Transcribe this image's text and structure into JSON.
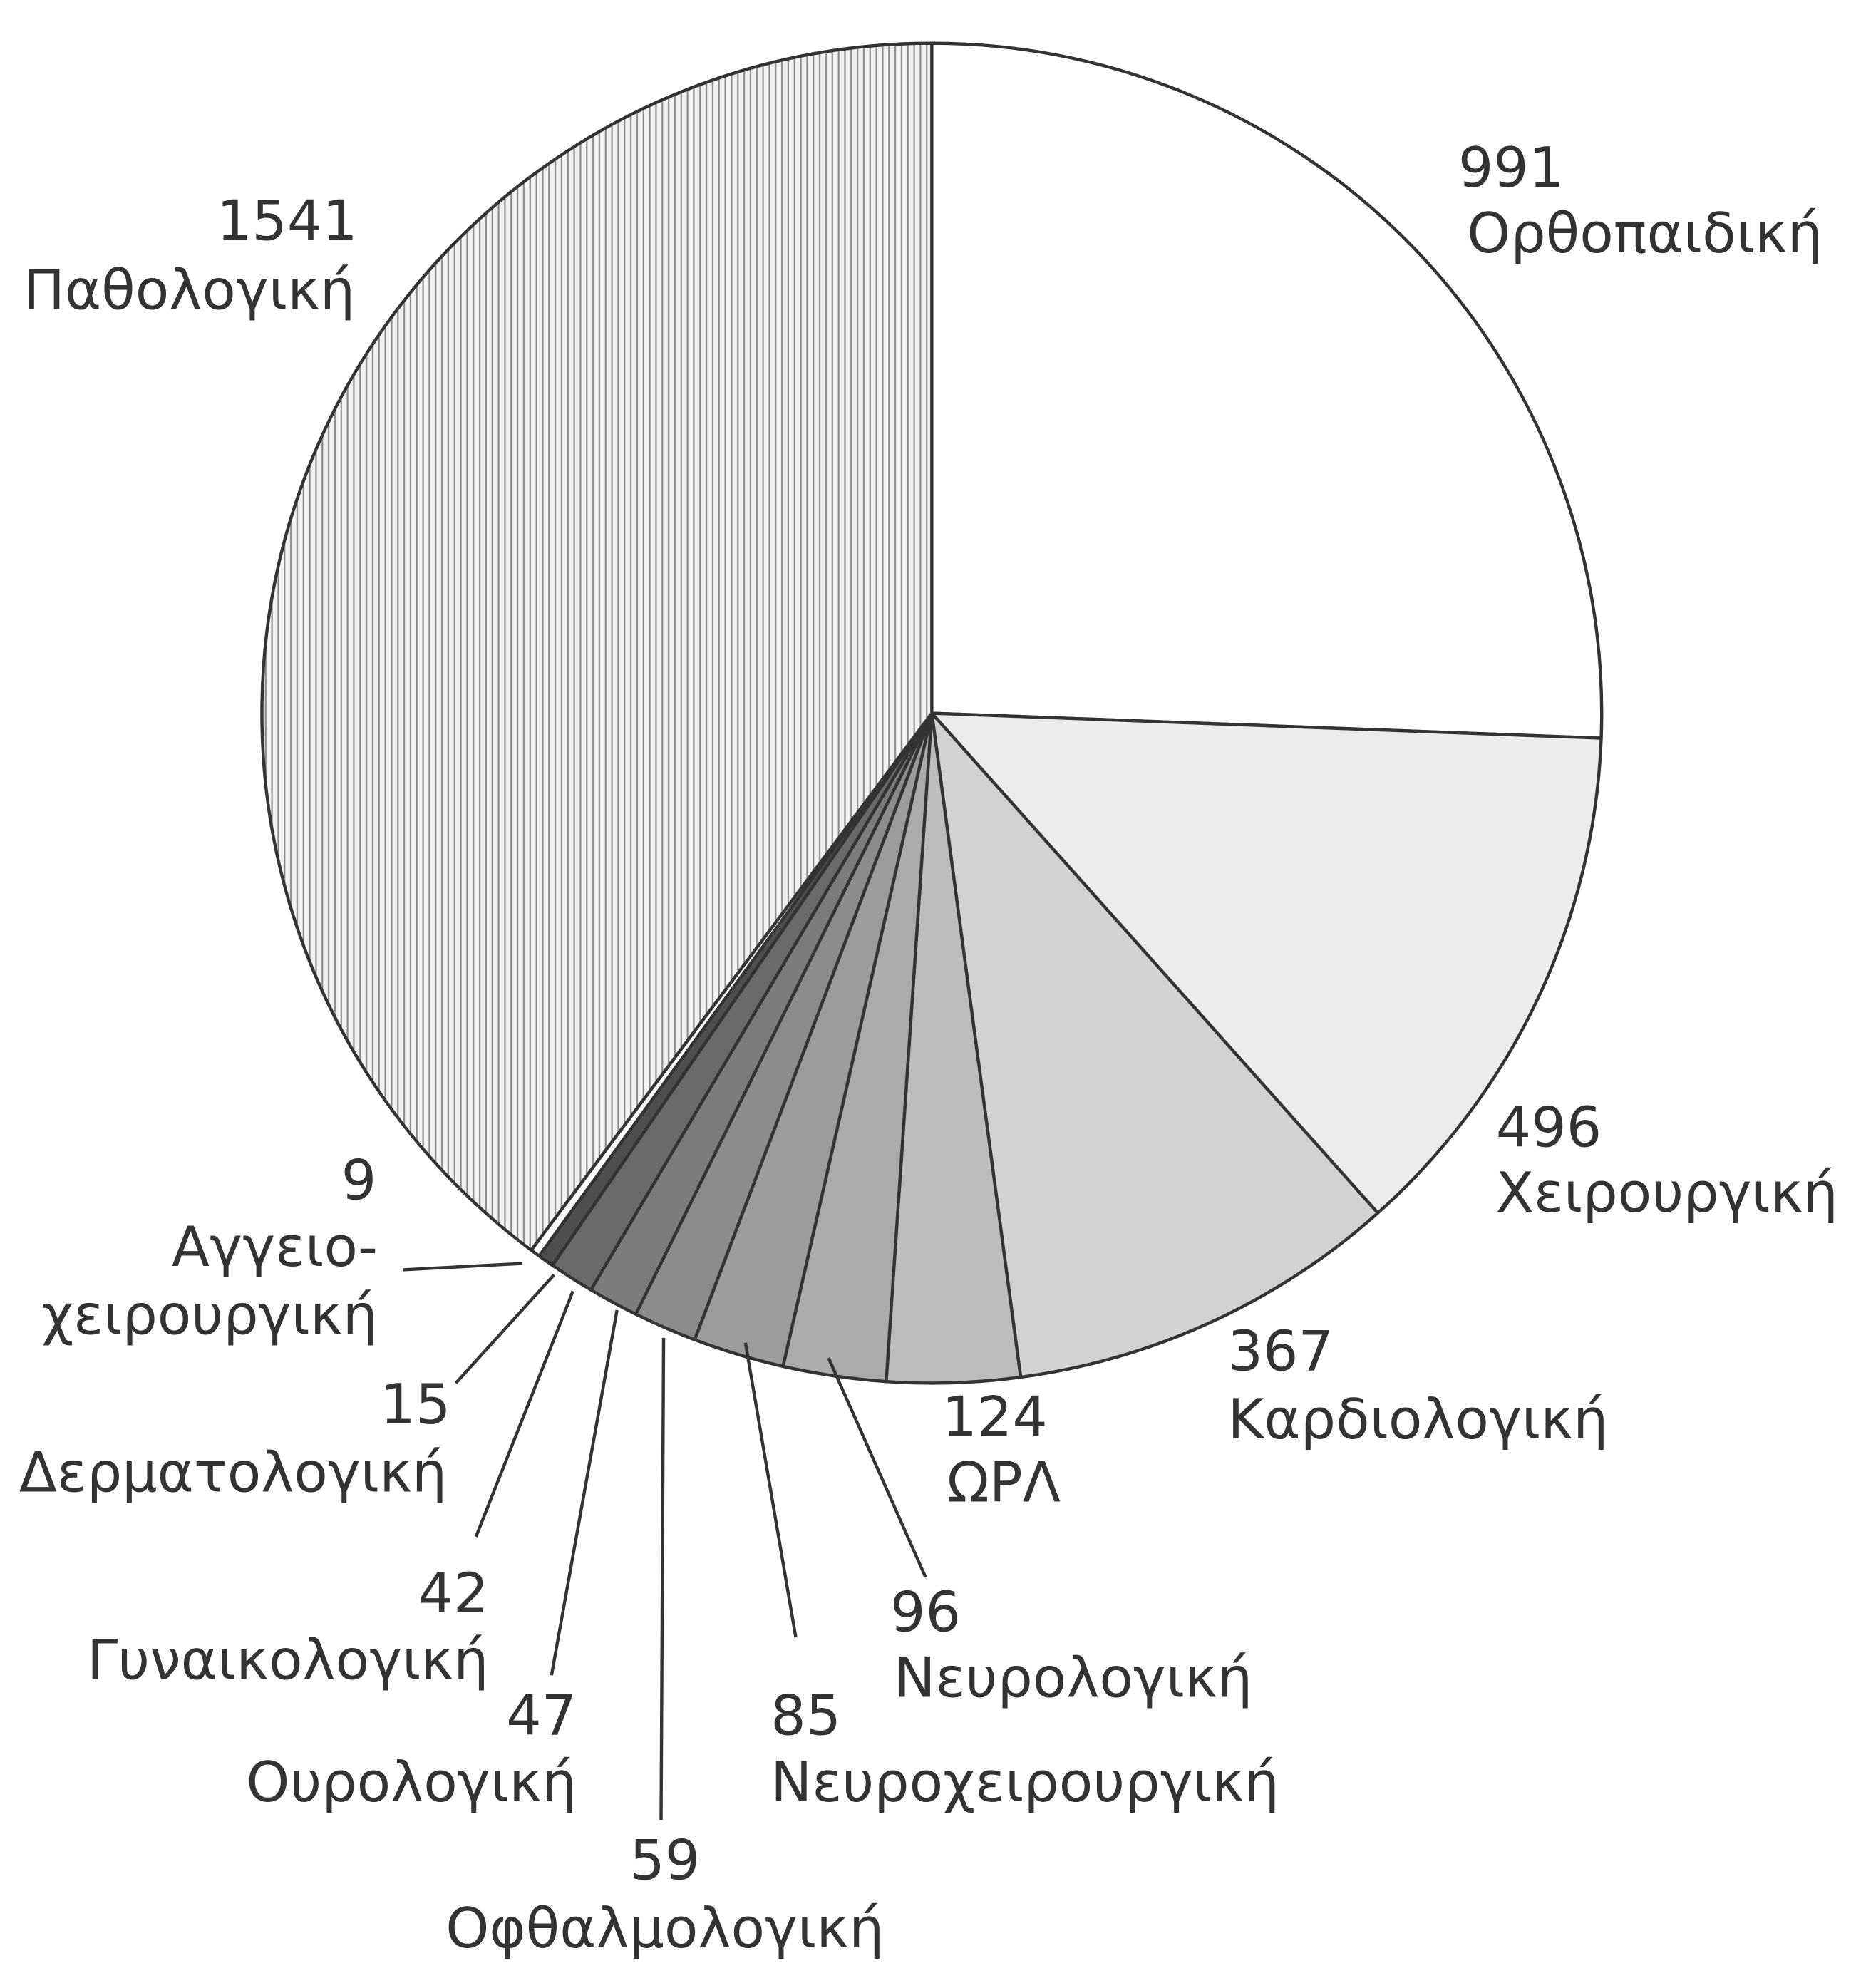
{
  "chart_data": {
    "type": "pie",
    "categories": [
      "Ορθοπαιδική",
      "Χειρουργική",
      "Καρδιολογική",
      "ΩΡΛ",
      "Νευρολογική",
      "Νευροχειρουργική",
      "Οφθαλμολογική",
      "Ουρολογική",
      "Γυναικολογική",
      "Δερματολογική",
      "Αγγειο-\nχειρουργική",
      "Παθολογική"
    ],
    "values": [
      991,
      496,
      367,
      124,
      96,
      85,
      59,
      47,
      42,
      15,
      9,
      1541
    ],
    "colors": [
      "#ffffff",
      "#ececec",
      "#d2d2d2",
      "#bdbdbd",
      "#ababab",
      "#9c9c9c",
      "#8c8c8c",
      "#7c7c7c",
      "#6a6a6a",
      "#4e4e4e",
      "#ffffff",
      "#e2e2e2"
    ],
    "patterns": [
      null,
      null,
      null,
      null,
      null,
      null,
      null,
      null,
      null,
      null,
      null,
      "vertical-lines"
    ]
  }
}
